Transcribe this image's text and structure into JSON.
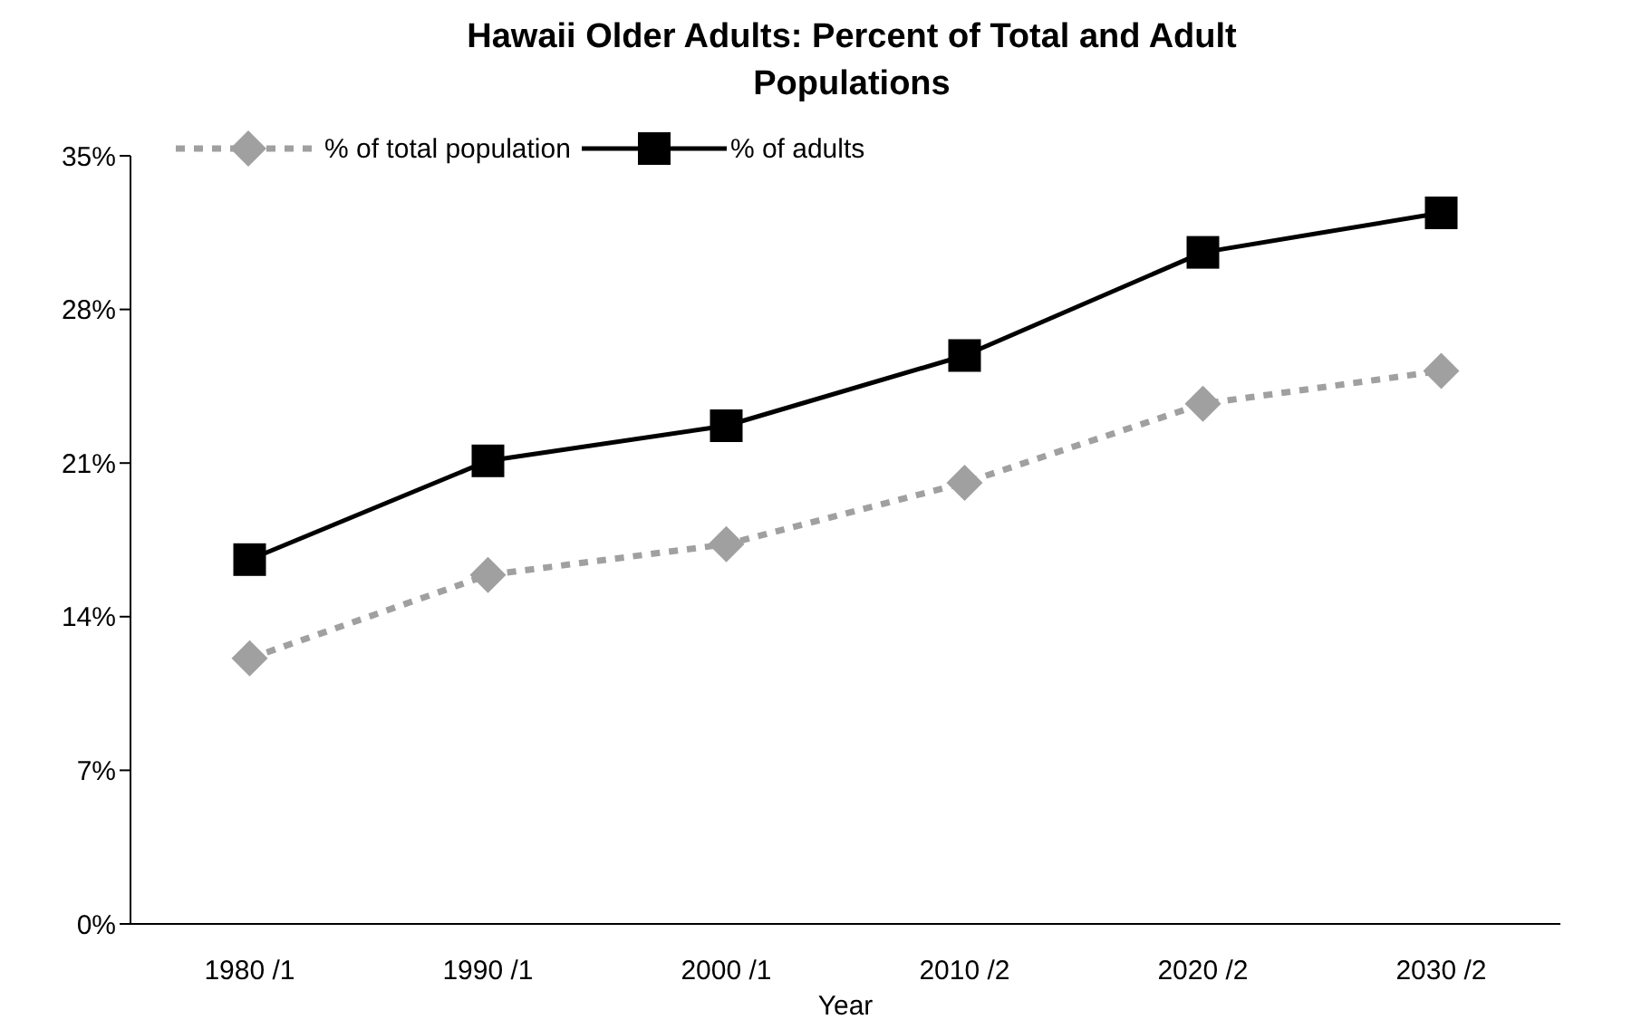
{
  "chart_data": {
    "type": "line",
    "title": "Hawaii Older Adults:  Percent of Total and Adult Populations",
    "xlabel": "Year",
    "categories": [
      "1980 /1",
      "1990 /1",
      "2000 /1",
      "2010 /2",
      "2020 /2",
      "2030 /2"
    ],
    "series": [
      {
        "name": "% of total population",
        "color": "#a0a0a0",
        "marker": "diamond",
        "line_style": "dashed",
        "values": [
          12.1,
          15.9,
          17.3,
          20.1,
          23.7,
          25.2
        ]
      },
      {
        "name": "% of adults",
        "color": "#000000",
        "marker": "square",
        "line_style": "solid",
        "values": [
          16.6,
          21.1,
          22.7,
          25.9,
          30.6,
          32.4
        ]
      }
    ],
    "ylim": [
      0,
      35
    ],
    "yticks": [
      {
        "value": 0,
        "label": "0%"
      },
      {
        "value": 7,
        "label": "7%"
      },
      {
        "value": 14,
        "label": "14%"
      },
      {
        "value": 21,
        "label": "21%"
      },
      {
        "value": 28,
        "label": "28%"
      },
      {
        "value": 35,
        "label": "35%"
      }
    ],
    "grid": false,
    "legend": "top left"
  }
}
